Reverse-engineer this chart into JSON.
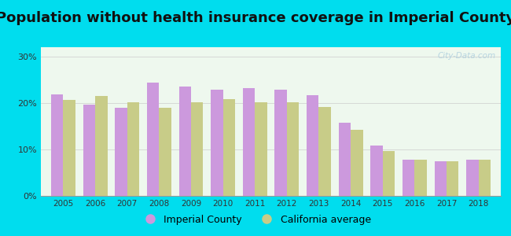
{
  "title": "Population without health insurance coverage in Imperial County",
  "years": [
    2005,
    2006,
    2007,
    2008,
    2009,
    2010,
    2011,
    2012,
    2013,
    2014,
    2015,
    2016,
    2017,
    2018
  ],
  "imperial_county": [
    21.8,
    19.7,
    18.9,
    24.3,
    23.5,
    22.8,
    23.2,
    22.8,
    21.6,
    15.7,
    10.8,
    7.8,
    7.5,
    7.8
  ],
  "california_avg": [
    20.6,
    21.5,
    20.1,
    18.9,
    20.1,
    20.8,
    20.1,
    20.1,
    19.2,
    14.2,
    9.6,
    7.8,
    7.5,
    7.8
  ],
  "imperial_color": "#cc99dd",
  "california_color": "#c8cc88",
  "background_outer": "#00ddee",
  "background_inner": "#eef8ee",
  "title_fontsize": 13,
  "ylim": [
    0,
    32
  ],
  "yticks": [
    0,
    10,
    20,
    30
  ],
  "ytick_labels": [
    "0%",
    "10%",
    "20%",
    "30%"
  ],
  "watermark": "City-Data.com",
  "legend_labels": [
    "Imperial County",
    "California average"
  ]
}
